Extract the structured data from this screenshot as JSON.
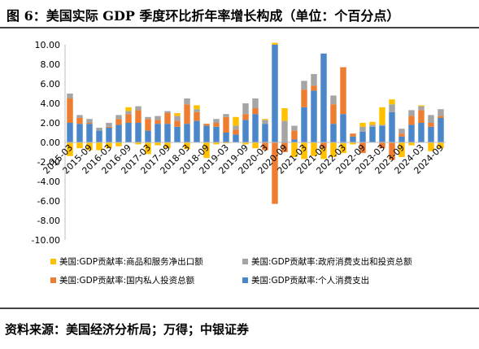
{
  "title": "图 6：美国实际 GDP 季度环比折年率增长构成（单位：个百分点）",
  "source": "资料来源：美国经济分析局；万得；中银证券",
  "colors": {
    "personal": "#4a86c8",
    "private_investment": "#ed7d31",
    "government": "#a5a5a5",
    "net_exports": "#ffc000",
    "axis": "#bfbfbf"
  },
  "chart_data": {
    "type": "bar",
    "stacked": true,
    "ylim": [
      -10,
      10
    ],
    "yticks": [
      "-10.00",
      "-8.00",
      "-6.00",
      "-4.00",
      "-2.00",
      "0.00",
      "2.00",
      "4.00",
      "6.00",
      "8.00",
      "10.00"
    ],
    "xtick_labels": [
      "2015-03",
      "2015-09",
      "2016-03",
      "2016-09",
      "2017-03",
      "2017-09",
      "2018-03",
      "2018-09",
      "2019-03",
      "2019-09",
      "2020-03",
      "2020-09",
      "2021-03",
      "2021-09",
      "2022-03",
      "2022-09",
      "2023-03",
      "2023-09",
      "2024-03",
      "2024-09"
    ],
    "categories": [
      "2015-03",
      "2015-06",
      "2015-09",
      "2015-12",
      "2016-03",
      "2016-06",
      "2016-09",
      "2016-12",
      "2017-03",
      "2017-06",
      "2017-09",
      "2017-12",
      "2018-03",
      "2018-06",
      "2018-09",
      "2018-12",
      "2019-03",
      "2019-06",
      "2019-09",
      "2019-12",
      "2020-03",
      "2020-06",
      "2020-09",
      "2020-12",
      "2021-03",
      "2021-06",
      "2021-09",
      "2021-12",
      "2022-03",
      "2022-06",
      "2022-09",
      "2022-12",
      "2023-03",
      "2023-06",
      "2023-09",
      "2023-12",
      "2024-03",
      "2024-06",
      "2024-09"
    ],
    "series": [
      {
        "name": "美国:GDP贡献率:个人消费支出",
        "values": [
          2.0,
          1.9,
          1.9,
          1.2,
          1.5,
          1.8,
          2.0,
          2.0,
          1.2,
          1.9,
          1.9,
          1.6,
          1.9,
          2.2,
          1.7,
          1.6,
          1.0,
          0.8,
          2.3,
          2.9,
          1.9,
          10.0,
          0.1,
          0.3,
          3.6,
          5.3,
          9.1,
          1.9,
          2.9,
          0.6,
          1.1,
          1.6,
          1.7,
          3.1,
          0.6,
          1.8,
          2.0,
          1.6,
          2.5
        ]
      },
      {
        "name": "美国:GDP贡献率:国内私人投资总额",
        "values": [
          2.5,
          0.6,
          0.1,
          0.0,
          0.1,
          0.6,
          0.9,
          1.3,
          1.2,
          0.4,
          1.1,
          0.6,
          2.0,
          0.9,
          0.2,
          0.4,
          1.6,
          0.5,
          0.6,
          0.6,
          -0.8,
          -6.3,
          -1.0,
          0.9,
          1.8,
          0.5,
          -0.6,
          2.0,
          4.8,
          0.3,
          -1.1,
          0.0,
          -0.6,
          -1.8,
          0.3,
          0.9,
          1.3,
          0.4,
          0.2
        ]
      },
      {
        "name": "美国:GDP贡献率:政府消费支出和投资总额",
        "values": [
          0.5,
          0.3,
          0.4,
          0.3,
          0.4,
          0.4,
          0.3,
          0.4,
          0.2,
          0.4,
          0.2,
          0.5,
          0.6,
          0.3,
          0.0,
          0.4,
          0.3,
          0.4,
          1.1,
          1.0,
          0.4,
          0.0,
          2.1,
          0.5,
          0.9,
          1.2,
          0.0,
          0.9,
          -0.1,
          0.0,
          0.5,
          0.2,
          0.1,
          0.8,
          0.5,
          0.6,
          0.4,
          0.8,
          0.7
        ]
      },
      {
        "name": "美国:GDP贡献率:商品和服务净出口额",
        "values": [
          -1.4,
          -0.6,
          -0.8,
          -0.8,
          -0.6,
          -0.4,
          0.4,
          -0.2,
          -1.2,
          -0.3,
          -0.6,
          0.3,
          -0.7,
          0.4,
          -1.6,
          -0.2,
          -0.1,
          0.9,
          -0.2,
          -0.6,
          0.1,
          0.2,
          1.3,
          -1.5,
          -1.7,
          -1.4,
          -1.1,
          -1.5,
          -1.0,
          -0.2,
          0.4,
          0.3,
          1.8,
          0.5,
          -1.5,
          -0.3,
          0.1,
          -0.9,
          -0.6
        ]
      }
    ],
    "legend": [
      "美国:GDP贡献率:商品和服务净出口额",
      "美国:GDP贡献率:政府消费支出和投资总额",
      "美国:GDP贡献率:国内私人投资总额",
      "美国:GDP贡献率:个人消费支出"
    ],
    "legend_position": "bottom",
    "grid": false
  }
}
